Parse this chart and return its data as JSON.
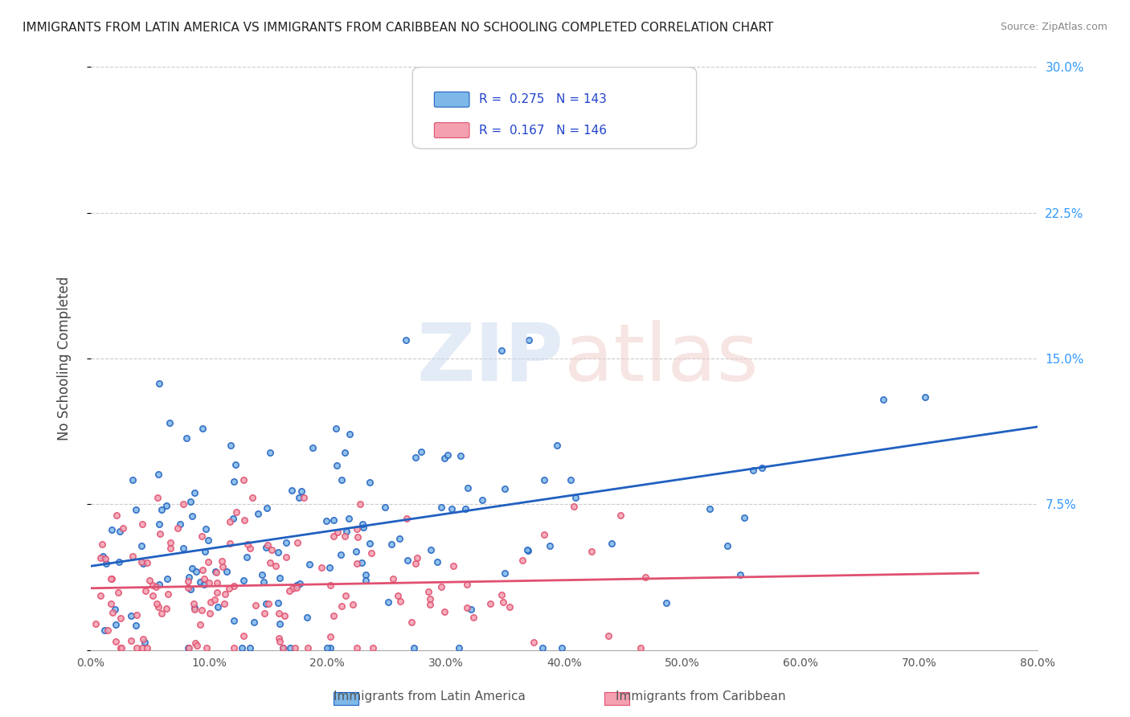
{
  "title": "IMMIGRANTS FROM LATIN AMERICA VS IMMIGRANTS FROM CARIBBEAN NO SCHOOLING COMPLETED CORRELATION CHART",
  "source": "Source: ZipAtlas.com",
  "xlabel_bottom": "",
  "ylabel": "No Schooling Completed",
  "legend_label_1": "Immigrants from Latin America",
  "legend_label_2": "Immigrants from Caribbean",
  "R1": 0.275,
  "N1": 143,
  "R2": 0.167,
  "N2": 146,
  "color1": "#7eb8e8",
  "color2": "#f4a0b0",
  "line_color1": "#2060c0",
  "line_color2": "#e05070",
  "bg_color": "#ffffff",
  "grid_color": "#cccccc",
  "watermark_text": "ZIPatlas",
  "watermark_color_zip": "#d0d8e8",
  "watermark_color_atlas": "#e8d8d0",
  "xlim": [
    0.0,
    0.8
  ],
  "ylim": [
    0.0,
    0.3
  ],
  "xticks": [
    0.0,
    0.1,
    0.2,
    0.3,
    0.4,
    0.5,
    0.6,
    0.7,
    0.8
  ],
  "yticks": [
    0.0,
    0.075,
    0.15,
    0.225,
    0.3
  ],
  "ytick_labels": [
    "",
    "7.5%",
    "15.0%",
    "22.5%",
    "30.0%"
  ],
  "xtick_labels": [
    "0.0%",
    "",
    "",
    "",
    "",
    "",
    "",
    "",
    "80.0%"
  ],
  "right_ytick_labels": [
    "",
    "7.5%",
    "15.0%",
    "22.5%",
    "30.0%"
  ],
  "seed1": 42,
  "seed2": 99,
  "scatter_alpha": 0.85,
  "scatter_size": 28,
  "scatter_linewidth": 1.2
}
